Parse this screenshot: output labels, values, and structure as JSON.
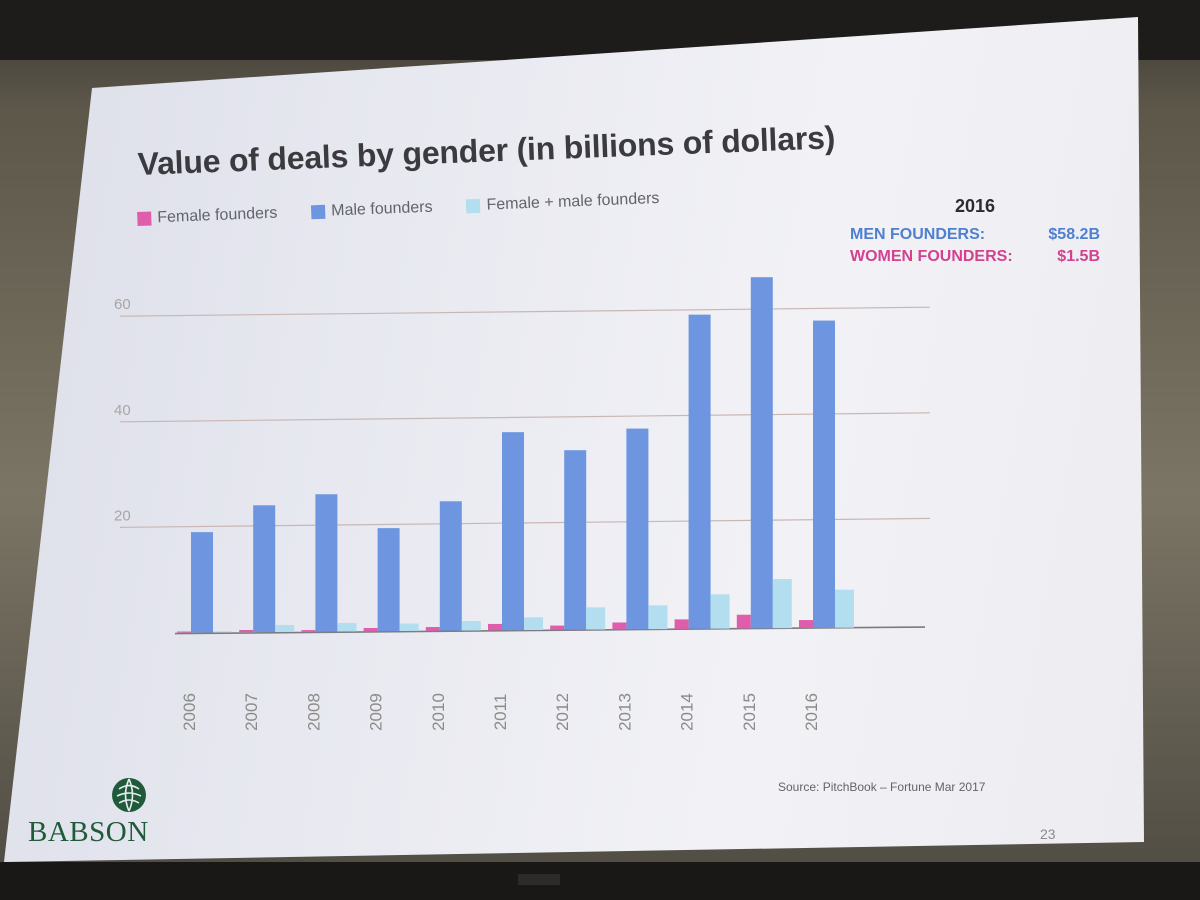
{
  "slide": {
    "title": "Value of deals by gender (in billions of dollars)",
    "legend": [
      {
        "label": "Female founders",
        "color": "#df5dab"
      },
      {
        "label": "Male founders",
        "color": "#6d95e0"
      },
      {
        "label": "Female + male founders",
        "color": "#b3def0"
      }
    ],
    "callout": {
      "year": "2016",
      "men_label": "MEN FOUNDERS:",
      "men_value": "$58.2B",
      "women_label": "WOMEN FOUNDERS:",
      "women_value": "$1.5B"
    },
    "source": "Source: PitchBook – Fortune Mar 2017",
    "page_number": "23",
    "logo_text": "BABSON"
  },
  "colors": {
    "female": "#df5dab",
    "male": "#6d95e0",
    "both": "#b3def0",
    "men_callout": "#4f7fcf",
    "women_callout": "#d2428f",
    "gridline": "#c9b7b4"
  },
  "chart_data": {
    "type": "bar",
    "title": "Value of deals by gender (in billions of dollars)",
    "xlabel": "",
    "ylabel": "",
    "ylim": [
      0,
      65
    ],
    "yticks": [
      20,
      40,
      60
    ],
    "grid": true,
    "legend_position": "top-left",
    "categories": [
      "2006",
      "2007",
      "2008",
      "2009",
      "2010",
      "2011",
      "2012",
      "2013",
      "2014",
      "2015",
      "2016"
    ],
    "series": [
      {
        "name": "Female founders",
        "color": "#df5dab",
        "values": [
          0.2,
          0.4,
          0.3,
          0.6,
          0.7,
          1.2,
          0.8,
          1.3,
          1.8,
          2.6,
          1.5
        ]
      },
      {
        "name": "Male founders",
        "color": "#6d95e0",
        "values": [
          19,
          24,
          26,
          19.5,
          24.5,
          37.5,
          34,
          38,
          59.5,
          66.5,
          58.2
        ]
      },
      {
        "name": "Female + male founders",
        "color": "#b3def0",
        "values": [
          0.2,
          1.3,
          1.6,
          1.4,
          1.8,
          2.4,
          4.2,
          4.5,
          6.5,
          9.3,
          7.2
        ]
      }
    ]
  }
}
